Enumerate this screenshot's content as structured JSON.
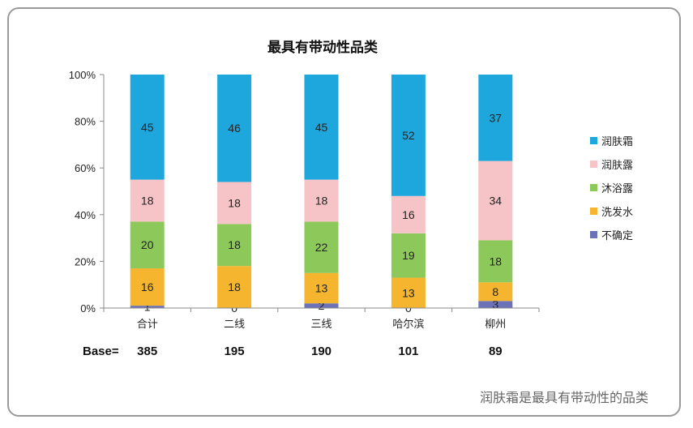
{
  "chart_data": {
    "type": "bar",
    "stacked": true,
    "title": "最具有带动性品类",
    "categories": [
      "合计",
      "二线",
      "三线",
      "哈尔滨",
      "柳州"
    ],
    "y_ticks": [
      "0%",
      "20%",
      "40%",
      "60%",
      "80%",
      "100%"
    ],
    "ylim": [
      0,
      100
    ],
    "series": [
      {
        "name": "不确定",
        "color": "#6b72b8",
        "values": [
          1,
          0,
          2,
          0,
          3
        ]
      },
      {
        "name": "洗发水",
        "color": "#f5b52e",
        "values": [
          16,
          18,
          13,
          13,
          8
        ]
      },
      {
        "name": "沐浴露",
        "color": "#8dc85a",
        "values": [
          20,
          18,
          22,
          19,
          18
        ]
      },
      {
        "name": "润肤露",
        "color": "#f6c4c6",
        "values": [
          18,
          18,
          18,
          16,
          34
        ]
      },
      {
        "name": "润肤霜",
        "color": "#1ea7dc",
        "values": [
          45,
          46,
          45,
          52,
          37
        ]
      }
    ],
    "legend_order": [
      "润肤霜",
      "润肤露",
      "沐浴露",
      "洗发水",
      "不确定"
    ],
    "legend_position": "right",
    "base_label": "Base=",
    "base_values": [
      "385",
      "195",
      "190",
      "101",
      "89"
    ]
  },
  "caption": "润肤霜是最具有带动性的品类"
}
